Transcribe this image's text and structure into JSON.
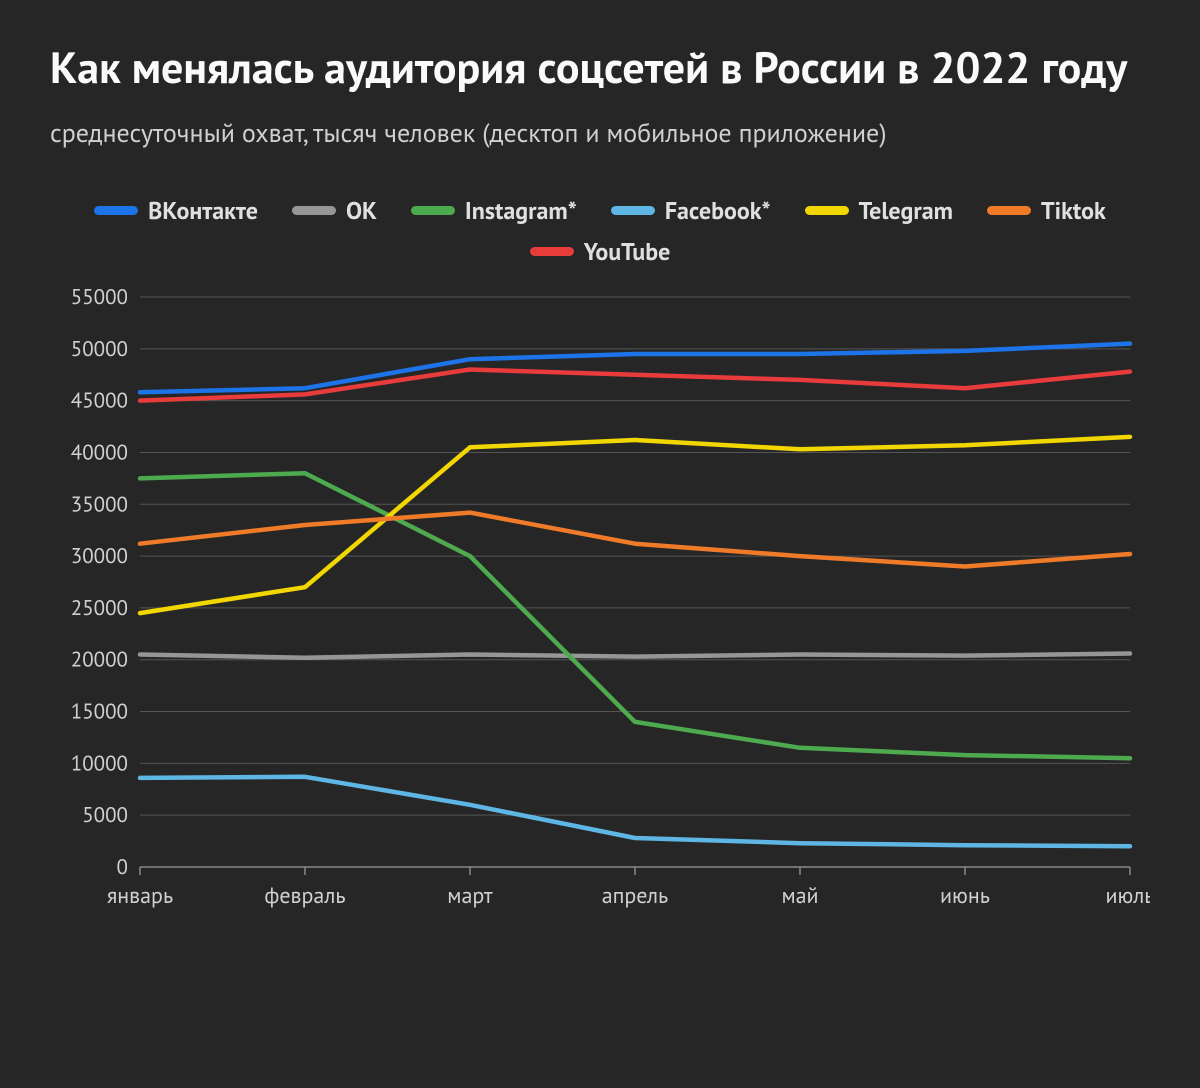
{
  "title": "Как менялась аудитория соцсетей в России в 2022 году",
  "subtitle": "среднесуточный охват, тысяч человек (десктоп и мобильное приложение)",
  "chart": {
    "type": "line",
    "background_color": "#262626",
    "grid_color": "#555555",
    "axis_color": "#888888",
    "text_color": "#d0d0d0",
    "title_fontsize": 44,
    "subtitle_fontsize": 26,
    "legend_fontsize": 24,
    "tick_fontsize": 21,
    "line_width": 4.5,
    "ylim": [
      0,
      55000
    ],
    "ytick_step": 5000,
    "categories": [
      "январь",
      "февраль",
      "март",
      "апрель",
      "май",
      "июнь",
      "июль"
    ],
    "series": [
      {
        "name": "ВКонтакте",
        "color": "#1d73e8",
        "values": [
          45800,
          46200,
          49000,
          49500,
          49500,
          49800,
          50500
        ]
      },
      {
        "name": "ОК",
        "color": "#969696",
        "values": [
          20500,
          20200,
          20500,
          20300,
          20500,
          20400,
          20600
        ]
      },
      {
        "name": "Instagram*",
        "color": "#4eaa4e",
        "values": [
          37500,
          38000,
          30000,
          14000,
          11500,
          10800,
          10500
        ]
      },
      {
        "name": "Facebook*",
        "color": "#5eb6e4",
        "values": [
          8600,
          8700,
          6000,
          2800,
          2300,
          2100,
          2000
        ]
      },
      {
        "name": "Telegram",
        "color": "#f2d600",
        "values": [
          24500,
          27000,
          40500,
          41200,
          40300,
          40700,
          41500
        ]
      },
      {
        "name": "Tiktok",
        "color": "#ef7b29",
        "values": [
          31200,
          33000,
          34200,
          31200,
          30000,
          29000,
          30200
        ]
      },
      {
        "name": "YouTube",
        "color": "#e83b3b",
        "values": [
          45000,
          45600,
          48000,
          47500,
          47000,
          46200,
          47800
        ]
      }
    ]
  }
}
